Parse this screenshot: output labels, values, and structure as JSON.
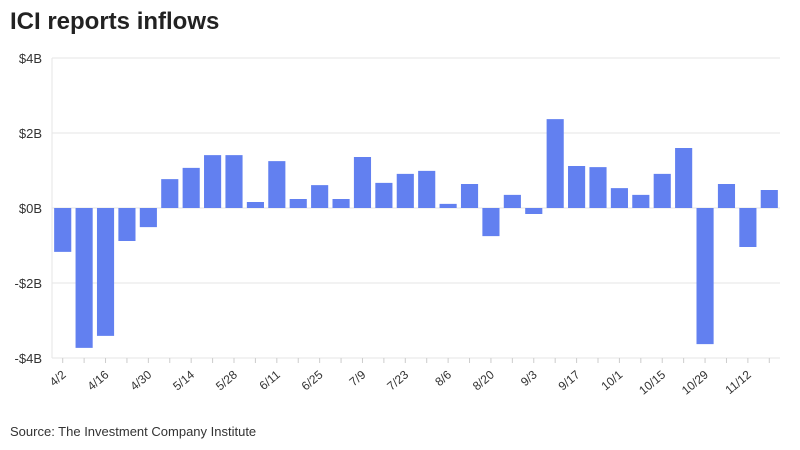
{
  "chart_data": {
    "type": "bar",
    "title": "ICI reports inflows",
    "source": "Source: The Investment Company Institute",
    "xlabel": "",
    "ylabel": "",
    "ylim": [
      -4,
      4
    ],
    "yticks": [
      {
        "v": 4,
        "label": "$4B"
      },
      {
        "v": 2,
        "label": "$2B"
      },
      {
        "v": 0,
        "label": "$0B"
      },
      {
        "v": -2,
        "label": "-$2B"
      },
      {
        "v": -4,
        "label": "-$4B"
      }
    ],
    "xtick_labels": [
      "4/2",
      "4/16",
      "4/30",
      "5/14",
      "5/28",
      "6/11",
      "6/25",
      "7/9",
      "7/23",
      "8/6",
      "8/20",
      "9/3",
      "9/17",
      "10/1",
      "10/15",
      "10/29",
      "11/12"
    ],
    "bar_color": "#6280f0",
    "grid": true,
    "values": [
      -1.17,
      -3.73,
      -3.41,
      -0.88,
      -0.51,
      0.77,
      1.07,
      1.41,
      1.41,
      0.16,
      1.25,
      0.24,
      0.61,
      0.24,
      1.36,
      0.67,
      0.91,
      0.99,
      0.11,
      0.64,
      -0.75,
      0.35,
      -0.16,
      2.37,
      1.12,
      1.09,
      0.53,
      0.35,
      0.91,
      1.6,
      -3.63,
      0.64,
      -1.04,
      0.48
    ]
  }
}
